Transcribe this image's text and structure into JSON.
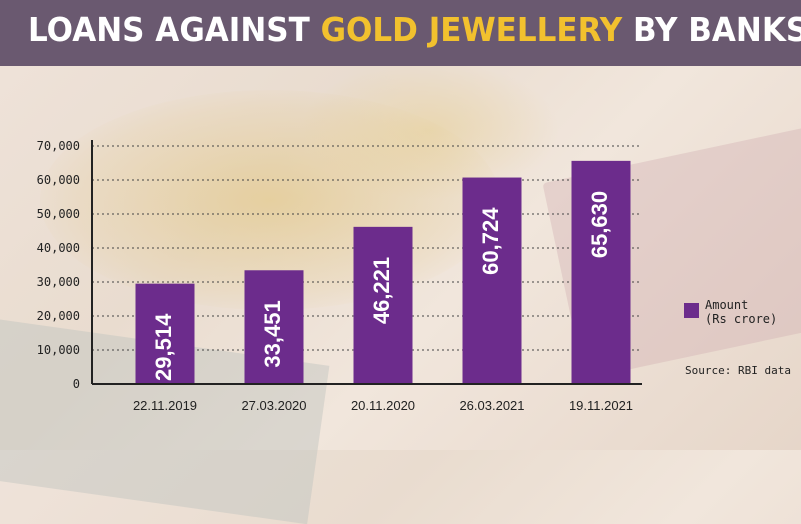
{
  "header": {
    "title_part1": "LOANS AGAINST ",
    "title_highlight": "GOLD JEWELLERY",
    "title_part2": " BY BANKS"
  },
  "colors": {
    "header_bg": "#6a5970",
    "highlight": "#f2c12e",
    "bar": "#6c2c8c"
  },
  "legend": {
    "line1": "Amount",
    "line2": "(Rs crore)"
  },
  "source": "Source: RBI data",
  "chart_data": {
    "type": "bar",
    "title": "LOANS AGAINST GOLD JEWELLERY BY BANKS",
    "categories": [
      "22.11.2019",
      "27.03.2020",
      "20.11.2020",
      "26.03.2021",
      "19.11.2021"
    ],
    "series": [
      {
        "name": "Amount (Rs crore)",
        "values": [
          29514,
          33451,
          46221,
          60724,
          65630
        ]
      }
    ],
    "data_labels": [
      "29,514",
      "33,451",
      "46,221",
      "60,724",
      "65,630"
    ],
    "ylim": [
      0,
      70000
    ],
    "yticks": [
      0,
      10000,
      20000,
      30000,
      40000,
      50000,
      60000,
      70000
    ],
    "ytick_labels": [
      "0",
      "10,000",
      "20,000",
      "30,000",
      "40,000",
      "50,000",
      "60,000",
      "70,000"
    ],
    "grid": "horizontal dotted",
    "legend_position": "right"
  }
}
